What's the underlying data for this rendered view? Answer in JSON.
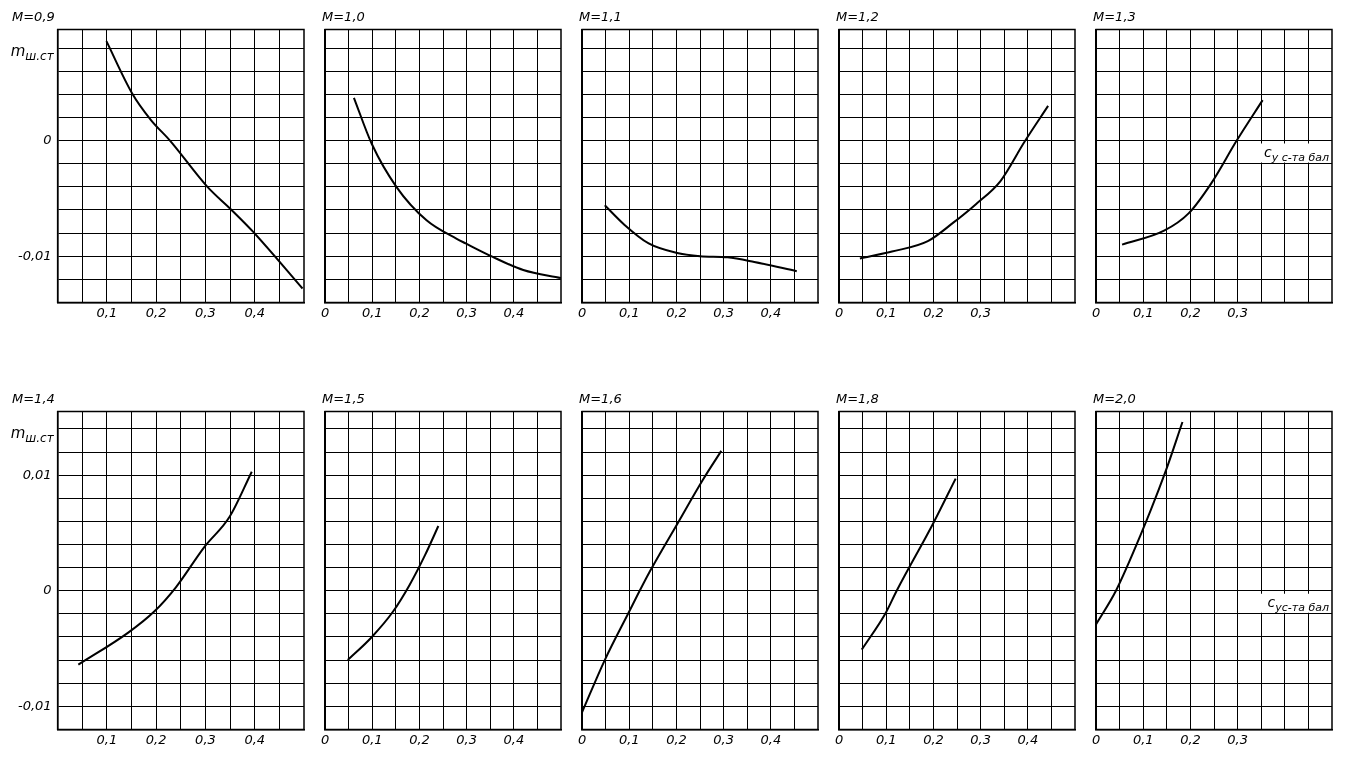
{
  "chart_data": [
    {
      "type": "line",
      "title": "M=0,9",
      "ylabel": "m$_{ш.ст}$",
      "xlim": [
        0,
        0.5
      ],
      "ylim": [
        -0.014,
        0.0096
      ],
      "grid": true,
      "xticks": [
        {
          "value": 0,
          "label": null
        },
        {
          "value": 0.05,
          "label": null
        },
        {
          "value": 0.1,
          "label": "0,1"
        },
        {
          "value": 0.15,
          "label": null
        },
        {
          "value": 0.2,
          "label": "0,2"
        },
        {
          "value": 0.25,
          "label": null
        },
        {
          "value": 0.3,
          "label": "0,3"
        },
        {
          "value": 0.35,
          "label": null
        },
        {
          "value": 0.4,
          "label": "0,4"
        },
        {
          "value": 0.45,
          "label": null
        }
      ],
      "yticks": [
        {
          "value": -0.012,
          "label": null
        },
        {
          "value": -0.01,
          "label": "-0,01"
        },
        {
          "value": -0.008,
          "label": null
        },
        {
          "value": -0.006,
          "label": null
        },
        {
          "value": -0.004,
          "label": null
        },
        {
          "value": -0.002,
          "label": null
        },
        {
          "value": 0,
          "label": "0"
        },
        {
          "value": 0.002,
          "label": null
        },
        {
          "value": 0.004,
          "label": null
        },
        {
          "value": 0.006,
          "label": null
        },
        {
          "value": 0.008,
          "label": null
        }
      ],
      "series": [
        {
          "color": "#000000",
          "x": [
            0.099,
            0.151,
            0.189,
            0.228,
            0.304,
            0.353,
            0.397,
            0.497
          ],
          "values": [
            0.0086,
            0.0041,
            0.0018,
            0,
            -0.004,
            -0.006,
            -0.0079,
            -0.0128
          ]
        }
      ]
    },
    {
      "type": "line",
      "title": "M=1,0",
      "tick_labels": "x",
      "xlim": [
        0,
        0.5
      ],
      "ylim": [
        -0.014,
        0.0096
      ],
      "grid": true,
      "xticks": [
        {
          "value": 0,
          "label": "0"
        },
        {
          "value": 0.05,
          "label": null
        },
        {
          "value": 0.1,
          "label": "0,1"
        },
        {
          "value": 0.15,
          "label": null
        },
        {
          "value": 0.2,
          "label": "0,2"
        },
        {
          "value": 0.25,
          "label": null
        },
        {
          "value": 0.3,
          "label": "0,3"
        },
        {
          "value": 0.35,
          "label": null
        },
        {
          "value": 0.4,
          "label": "0,4"
        },
        {
          "value": 0.45,
          "label": null
        }
      ],
      "yticks": [
        {
          "value": -0.012,
          "label": null
        },
        {
          "value": -0.01,
          "label": null
        },
        {
          "value": -0.008,
          "label": null
        },
        {
          "value": -0.006,
          "label": null
        },
        {
          "value": -0.004,
          "label": null
        },
        {
          "value": -0.002,
          "label": null
        },
        {
          "value": 0,
          "label": null
        },
        {
          "value": 0.002,
          "label": null
        },
        {
          "value": 0.004,
          "label": null
        },
        {
          "value": 0.006,
          "label": null
        },
        {
          "value": 0.008,
          "label": null
        }
      ],
      "series": [
        {
          "color": "#000000",
          "x": [
            0.061,
            0.099,
            0.151,
            0.215,
            0.279,
            0.298,
            0.352,
            0.42,
            0.5
          ],
          "values": [
            0.0037,
            -0.0003,
            -0.004,
            -0.0069,
            -0.0085,
            -0.0089,
            -0.01,
            -0.0112,
            -0.0119
          ]
        }
      ]
    },
    {
      "type": "line",
      "title": "M=1,1",
      "tick_labels": "x",
      "xlim": [
        0,
        0.5
      ],
      "ylim": [
        -0.014,
        0.0096
      ],
      "grid": true,
      "xticks": [
        {
          "value": 0,
          "label": "0"
        },
        {
          "value": 0.05,
          "label": null
        },
        {
          "value": 0.1,
          "label": "0,1"
        },
        {
          "value": 0.15,
          "label": null
        },
        {
          "value": 0.2,
          "label": "0,2"
        },
        {
          "value": 0.25,
          "label": null
        },
        {
          "value": 0.3,
          "label": "0,3"
        },
        {
          "value": 0.35,
          "label": null
        },
        {
          "value": 0.4,
          "label": "0,4"
        },
        {
          "value": 0.45,
          "label": null
        }
      ],
      "yticks": [
        {
          "value": -0.012,
          "label": null
        },
        {
          "value": -0.01,
          "label": null
        },
        {
          "value": -0.008,
          "label": null
        },
        {
          "value": -0.006,
          "label": null
        },
        {
          "value": -0.004,
          "label": null
        },
        {
          "value": -0.002,
          "label": null
        },
        {
          "value": 0,
          "label": null
        },
        {
          "value": 0.002,
          "label": null
        },
        {
          "value": 0.004,
          "label": null
        },
        {
          "value": 0.006,
          "label": null
        },
        {
          "value": 0.008,
          "label": null
        }
      ],
      "series": [
        {
          "color": "#000000",
          "x": [
            0.048,
            0.09,
            0.141,
            0.199,
            0.25,
            0.308,
            0.365,
            0.455
          ],
          "values": [
            -0.0056,
            -0.0073,
            -0.0089,
            -0.0097,
            -0.01,
            -0.0101,
            -0.0105,
            -0.0113
          ]
        }
      ]
    },
    {
      "type": "line",
      "title": "M=1,2",
      "tick_labels": "x",
      "xlim": [
        0,
        0.5
      ],
      "ylim": [
        -0.014,
        0.0096
      ],
      "grid": true,
      "xticks": [
        {
          "value": 0,
          "label": "0"
        },
        {
          "value": 0.05,
          "label": null
        },
        {
          "value": 0.1,
          "label": "0,1"
        },
        {
          "value": 0.15,
          "label": null
        },
        {
          "value": 0.2,
          "label": "0,2"
        },
        {
          "value": 0.25,
          "label": null
        },
        {
          "value": 0.3,
          "label": "0,3"
        },
        {
          "value": 0.35,
          "label": null
        },
        {
          "value": 0.4,
          "label": null
        },
        {
          "value": 0.45,
          "label": null
        }
      ],
      "yticks": [
        {
          "value": -0.012,
          "label": null
        },
        {
          "value": -0.01,
          "label": null
        },
        {
          "value": -0.008,
          "label": null
        },
        {
          "value": -0.006,
          "label": null
        },
        {
          "value": -0.004,
          "label": null
        },
        {
          "value": -0.002,
          "label": null
        },
        {
          "value": 0,
          "label": null
        },
        {
          "value": 0.002,
          "label": null
        },
        {
          "value": 0.004,
          "label": null
        },
        {
          "value": 0.006,
          "label": null
        },
        {
          "value": 0.008,
          "label": null
        }
      ],
      "series": [
        {
          "color": "#000000",
          "x": [
            0.044,
            0.112,
            0.188,
            0.242,
            0.29,
            0.342,
            0.393,
            0.443
          ],
          "values": [
            -0.0102,
            -0.0096,
            -0.0087,
            -0.0071,
            -0.0055,
            -0.0035,
            -0.0001,
            0.003
          ]
        }
      ]
    },
    {
      "type": "line",
      "title": "M=1,3",
      "tick_labels": "x",
      "xlabel": "c$_{y с-та бал}$",
      "xlim": [
        0,
        0.5
      ],
      "ylim": [
        -0.014,
        0.0096
      ],
      "grid": true,
      "xticks": [
        {
          "value": 0,
          "label": "0"
        },
        {
          "value": 0.05,
          "label": null
        },
        {
          "value": 0.1,
          "label": "0,1"
        },
        {
          "value": 0.15,
          "label": null
        },
        {
          "value": 0.2,
          "label": "0,2"
        },
        {
          "value": 0.25,
          "label": null
        },
        {
          "value": 0.3,
          "label": "0,3"
        },
        {
          "value": 0.35,
          "label": null
        },
        {
          "value": 0.4,
          "label": null
        },
        {
          "value": 0.45,
          "label": null
        }
      ],
      "yticks": [
        {
          "value": -0.012,
          "label": null
        },
        {
          "value": -0.01,
          "label": null
        },
        {
          "value": -0.008,
          "label": null
        },
        {
          "value": -0.006,
          "label": null
        },
        {
          "value": -0.004,
          "label": null
        },
        {
          "value": -0.002,
          "label": null
        },
        {
          "value": 0,
          "label": null
        },
        {
          "value": 0.002,
          "label": null
        },
        {
          "value": 0.004,
          "label": null
        },
        {
          "value": 0.006,
          "label": null
        },
        {
          "value": 0.008,
          "label": null
        }
      ],
      "series": [
        {
          "color": "#000000",
          "x": [
            0.055,
            0.144,
            0.196,
            0.244,
            0.298,
            0.353
          ],
          "values": [
            -0.009,
            -0.0078,
            -0.0063,
            -0.0037,
            0,
            0.0035
          ]
        }
      ]
    },
    {
      "type": "line",
      "title": "M=1,4",
      "ylabel": "m$_{ш.ст}$",
      "xlim": [
        0,
        0.5
      ],
      "ylim": [
        -0.012,
        0.0155
      ],
      "grid": true,
      "xticks": [
        {
          "value": 0,
          "label": null
        },
        {
          "value": 0.05,
          "label": null
        },
        {
          "value": 0.1,
          "label": "0,1"
        },
        {
          "value": 0.15,
          "label": null
        },
        {
          "value": 0.2,
          "label": "0,2"
        },
        {
          "value": 0.25,
          "label": null
        },
        {
          "value": 0.3,
          "label": "0,3"
        },
        {
          "value": 0.35,
          "label": null
        },
        {
          "value": 0.4,
          "label": "0,4"
        },
        {
          "value": 0.45,
          "label": null
        }
      ],
      "yticks": [
        {
          "value": -0.01,
          "label": "-0,01"
        },
        {
          "value": -0.008,
          "label": null
        },
        {
          "value": -0.006,
          "label": null
        },
        {
          "value": -0.004,
          "label": null
        },
        {
          "value": -0.002,
          "label": null
        },
        {
          "value": 0,
          "label": "0"
        },
        {
          "value": 0.002,
          "label": null
        },
        {
          "value": 0.004,
          "label": null
        },
        {
          "value": 0.006,
          "label": null
        },
        {
          "value": 0.008,
          "label": null
        },
        {
          "value": 0.01,
          "label": "0,01"
        },
        {
          "value": 0.012,
          "label": null
        },
        {
          "value": 0.014,
          "label": null
        }
      ],
      "series": [
        {
          "color": "#000000",
          "x": [
            0.042,
            0.144,
            0.196,
            0.24,
            0.298,
            0.349,
            0.394
          ],
          "values": [
            -0.0064,
            -0.0036,
            -0.0018,
            0.0003,
            0.0038,
            0.0064,
            0.0103
          ]
        }
      ]
    },
    {
      "type": "line",
      "title": "M=1,5",
      "tick_labels": "x",
      "xlim": [
        0,
        0.5
      ],
      "ylim": [
        -0.012,
        0.0155
      ],
      "grid": true,
      "xticks": [
        {
          "value": 0,
          "label": "0"
        },
        {
          "value": 0.05,
          "label": null
        },
        {
          "value": 0.1,
          "label": "0,1"
        },
        {
          "value": 0.15,
          "label": null
        },
        {
          "value": 0.2,
          "label": "0,2"
        },
        {
          "value": 0.25,
          "label": null
        },
        {
          "value": 0.3,
          "label": "0,3"
        },
        {
          "value": 0.35,
          "label": null
        },
        {
          "value": 0.4,
          "label": "0,4"
        },
        {
          "value": 0.45,
          "label": null
        }
      ],
      "yticks": [
        {
          "value": -0.01,
          "label": null
        },
        {
          "value": -0.008,
          "label": null
        },
        {
          "value": -0.006,
          "label": null
        },
        {
          "value": -0.004,
          "label": null
        },
        {
          "value": -0.002,
          "label": null
        },
        {
          "value": 0,
          "label": null
        },
        {
          "value": 0.002,
          "label": null
        },
        {
          "value": 0.004,
          "label": null
        },
        {
          "value": 0.006,
          "label": null
        },
        {
          "value": 0.008,
          "label": null
        },
        {
          "value": 0.01,
          "label": null
        },
        {
          "value": 0.012,
          "label": null
        },
        {
          "value": 0.014,
          "label": null
        }
      ],
      "series": [
        {
          "color": "#000000",
          "x": [
            0.048,
            0.099,
            0.144,
            0.179,
            0.212,
            0.24
          ],
          "values": [
            -0.006,
            -0.004,
            -0.0018,
            0.0005,
            0.0031,
            0.0056
          ]
        }
      ]
    },
    {
      "type": "line",
      "title": "M=1,6",
      "tick_labels": "x",
      "xlim": [
        0,
        0.5
      ],
      "ylim": [
        -0.012,
        0.0155
      ],
      "grid": true,
      "xticks": [
        {
          "value": 0,
          "label": "0"
        },
        {
          "value": 0.05,
          "label": null
        },
        {
          "value": 0.1,
          "label": "0,1"
        },
        {
          "value": 0.15,
          "label": null
        },
        {
          "value": 0.2,
          "label": "0,2"
        },
        {
          "value": 0.25,
          "label": null
        },
        {
          "value": 0.3,
          "label": "0,3"
        },
        {
          "value": 0.35,
          "label": null
        },
        {
          "value": 0.4,
          "label": "0,4"
        },
        {
          "value": 0.45,
          "label": null
        }
      ],
      "yticks": [
        {
          "value": -0.01,
          "label": null
        },
        {
          "value": -0.008,
          "label": null
        },
        {
          "value": -0.006,
          "label": null
        },
        {
          "value": -0.004,
          "label": null
        },
        {
          "value": -0.002,
          "label": null
        },
        {
          "value": 0,
          "label": null
        },
        {
          "value": 0.002,
          "label": null
        },
        {
          "value": 0.004,
          "label": null
        },
        {
          "value": 0.006,
          "label": null
        },
        {
          "value": 0.008,
          "label": null
        },
        {
          "value": 0.01,
          "label": null
        },
        {
          "value": 0.012,
          "label": null
        },
        {
          "value": 0.014,
          "label": null
        }
      ],
      "series": [
        {
          "color": "#000000",
          "x": [
            0,
            0.048,
            0.096,
            0.144,
            0.202,
            0.256,
            0.295
          ],
          "values": [
            -0.0105,
            -0.006,
            -0.0021,
            0.0017,
            0.0058,
            0.0096,
            0.0121
          ]
        }
      ]
    },
    {
      "type": "line",
      "title": "M=1,8",
      "tick_labels": "x",
      "xlim": [
        0,
        0.5
      ],
      "ylim": [
        -0.012,
        0.0155
      ],
      "grid": true,
      "xticks": [
        {
          "value": 0,
          "label": "0"
        },
        {
          "value": 0.05,
          "label": null
        },
        {
          "value": 0.1,
          "label": "0,1"
        },
        {
          "value": 0.15,
          "label": null
        },
        {
          "value": 0.2,
          "label": "0,2"
        },
        {
          "value": 0.25,
          "label": null
        },
        {
          "value": 0.3,
          "label": "0,3"
        },
        {
          "value": 0.35,
          "label": null
        },
        {
          "value": 0.4,
          "label": "0,4"
        },
        {
          "value": 0.45,
          "label": null
        }
      ],
      "yticks": [
        {
          "value": -0.01,
          "label": null
        },
        {
          "value": -0.008,
          "label": null
        },
        {
          "value": -0.006,
          "label": null
        },
        {
          "value": -0.004,
          "label": null
        },
        {
          "value": -0.002,
          "label": null
        },
        {
          "value": 0,
          "label": null
        },
        {
          "value": 0.002,
          "label": null
        },
        {
          "value": 0.004,
          "label": null
        },
        {
          "value": 0.006,
          "label": null
        },
        {
          "value": 0.008,
          "label": null
        },
        {
          "value": 0.01,
          "label": null
        },
        {
          "value": 0.012,
          "label": null
        },
        {
          "value": 0.014,
          "label": null
        }
      ],
      "series": [
        {
          "color": "#000000",
          "x": [
            0.048,
            0.099,
            0.122,
            0.199,
            0.247
          ],
          "values": [
            -0.0051,
            -0.0019,
            0,
            0.0058,
            0.0097
          ]
        }
      ]
    },
    {
      "type": "line",
      "title": "M=2,0",
      "tick_labels": "x",
      "xlabel": "c$_{yс-та бал}$",
      "xlim": [
        0,
        0.5
      ],
      "ylim": [
        -0.012,
        0.0155
      ],
      "grid": true,
      "xticks": [
        {
          "value": 0,
          "label": "0"
        },
        {
          "value": 0.05,
          "label": null
        },
        {
          "value": 0.1,
          "label": "0,1"
        },
        {
          "value": 0.15,
          "label": null
        },
        {
          "value": 0.2,
          "label": "0,2"
        },
        {
          "value": 0.25,
          "label": null
        },
        {
          "value": 0.3,
          "label": "0,3"
        },
        {
          "value": 0.35,
          "label": null
        },
        {
          "value": 0.4,
          "label": null
        },
        {
          "value": 0.45,
          "label": null
        }
      ],
      "yticks": [
        {
          "value": -0.01,
          "label": null
        },
        {
          "value": -0.008,
          "label": null
        },
        {
          "value": -0.006,
          "label": null
        },
        {
          "value": -0.004,
          "label": null
        },
        {
          "value": -0.002,
          "label": null
        },
        {
          "value": 0,
          "label": null
        },
        {
          "value": 0.002,
          "label": null
        },
        {
          "value": 0.004,
          "label": null
        },
        {
          "value": 0.006,
          "label": null
        },
        {
          "value": 0.008,
          "label": null
        },
        {
          "value": 0.01,
          "label": null
        },
        {
          "value": 0.012,
          "label": null
        },
        {
          "value": 0.014,
          "label": null
        }
      ],
      "series": [
        {
          "color": "#000000",
          "x": [
            0,
            0.042,
            0.093,
            0.147,
            0.183
          ],
          "values": [
            -0.0029,
            0,
            0.0047,
            0.0103,
            0.0146
          ]
        }
      ]
    }
  ]
}
